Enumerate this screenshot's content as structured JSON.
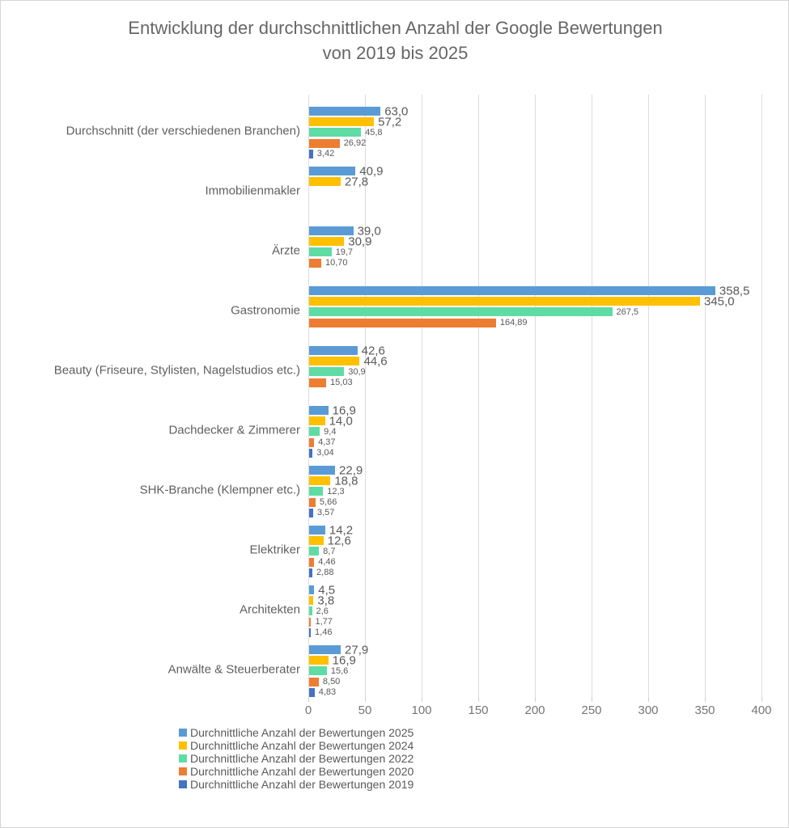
{
  "title": {
    "line1": "Entwicklung der durchschnittlichen Anzahl der Google Bewertungen",
    "line2": "von 2019 bis 2025"
  },
  "colors": {
    "series_2025": "#5B9BD5",
    "series_2024": "#FFC000",
    "series_2022": "#5EDCA4",
    "series_2020": "#ED7D31",
    "series_2019": "#4472C4",
    "text": "#595959",
    "grid": "#DCDCDC"
  },
  "chart_data": {
    "type": "bar",
    "orientation": "horizontal",
    "title": "Entwicklung der durchschnittlichen Anzahl der Google Bewertungen von 2019 bis 2025",
    "xlabel": "",
    "ylabel": "",
    "xlim": [
      0,
      400
    ],
    "x_ticks": [
      0,
      50,
      100,
      150,
      200,
      250,
      300,
      350,
      400
    ],
    "grid": true,
    "legend_position": "bottom-left",
    "categories": [
      "Durchschnitt (der verschiedenen Branchen)",
      "Immobilienmakler",
      "Ärzte",
      "Gastronomie",
      "Beauty (Friseure, Stylisten, Nagelstudios etc.)",
      "Dachdecker & Zimmerer",
      "SHK-Branche (Klempner etc.)",
      "Elektriker",
      "Architekten",
      "Anwälte & Steuerberater"
    ],
    "series": [
      {
        "name": "Durchnittliche Anzahl der Bewertungen 2025",
        "year": "2025",
        "color": "#5B9BD5",
        "values": [
          63.0,
          40.9,
          39.0,
          358.5,
          42.6,
          16.9,
          22.9,
          14.2,
          4.5,
          27.9
        ],
        "labels": [
          "63,0",
          "40,9",
          "39,0",
          "358,5",
          "42,6",
          "16,9",
          "22,9",
          "14,2",
          "4,5",
          "27,9"
        ]
      },
      {
        "name": "Durchnittliche Anzahl der Bewertungen 2024",
        "year": "2024",
        "color": "#FFC000",
        "values": [
          57.2,
          27.8,
          30.9,
          345.0,
          44.6,
          14.0,
          18.8,
          12.6,
          3.8,
          16.9
        ],
        "labels": [
          "57,2",
          "27,8",
          "30,9",
          "345,0",
          "44,6",
          "14,0",
          "18,8",
          "12,6",
          "3,8",
          "16,9"
        ]
      },
      {
        "name": "Durchnittliche Anzahl der Bewertungen 2022",
        "year": "2022",
        "color": "#5EDCA4",
        "values": [
          45.8,
          null,
          19.7,
          267.5,
          30.9,
          9.4,
          12.3,
          8.7,
          2.6,
          15.6
        ],
        "labels": [
          "45,8",
          null,
          "19,7",
          "267,5",
          "30,9",
          "9,4",
          "12,3",
          "8,7",
          "2,6",
          "15,6"
        ]
      },
      {
        "name": "Durchnittliche Anzahl der Bewertungen 2020",
        "year": "2020",
        "color": "#ED7D31",
        "values": [
          26.92,
          null,
          10.7,
          164.89,
          15.03,
          4.37,
          5.66,
          4.46,
          1.77,
          8.5
        ],
        "labels": [
          "26,92",
          null,
          "10,70",
          "164,89",
          "15,03",
          "4,37",
          "5,66",
          "4,46",
          "1,77",
          "8,50"
        ]
      },
      {
        "name": "Durchnittliche Anzahl der Bewertungen 2019",
        "year": "2019",
        "color": "#4472C4",
        "values": [
          3.42,
          null,
          null,
          null,
          null,
          3.04,
          3.57,
          2.88,
          1.46,
          4.83
        ],
        "labels": [
          "3,42",
          null,
          null,
          null,
          null,
          "3,04",
          "3,57",
          "2,88",
          "1,46",
          "4,83"
        ]
      }
    ]
  }
}
